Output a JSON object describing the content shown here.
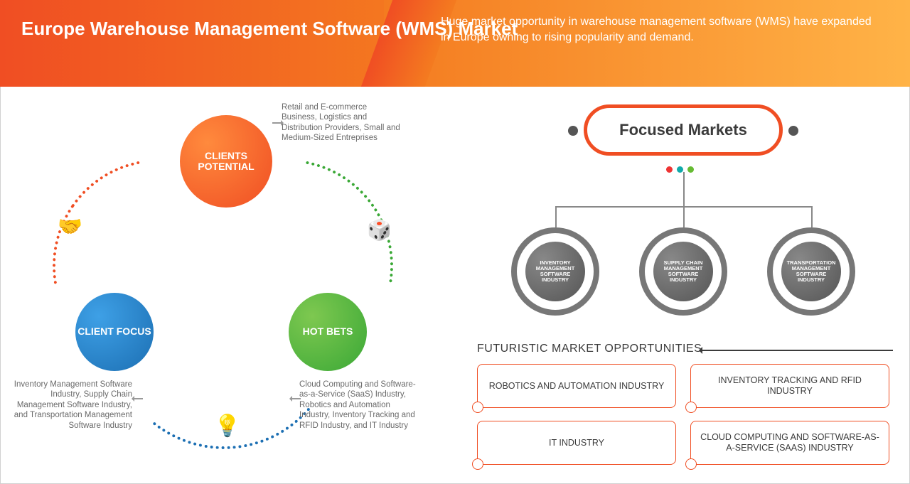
{
  "header": {
    "title": "Europe Warehouse Management Software (WMS) Market",
    "desc": "Huge market opportunity in warehouse management software (WMS) have expanded in Europe owning to rising popularity and demand."
  },
  "colors": {
    "orange_start": "#f04e23",
    "orange_end": "#f47b20",
    "blue": "#1c6fb3",
    "green": "#3aa836",
    "grey": "#777"
  },
  "circles": {
    "potential": {
      "label": "CLIENTS POTENTIAL",
      "desc": "Retail and E-commerce Business, Logistics and Distribution Providers, Small and Medium-Sized Entreprises"
    },
    "focus": {
      "label": "CLIENT FOCUS",
      "desc": "Inventory Management Software Industry, Supply Chain Management Software Industry, and Transportation Management Software Industry"
    },
    "hotbets": {
      "label": "HOT BETS",
      "desc": "Cloud Computing and Software-as-a-Service (SaaS) Industry, Robotics and Automation Industry, Inventory Tracking and RFID Industry, and IT Industry"
    }
  },
  "icons": {
    "handshake": "🤝",
    "dice": "🎲",
    "bulb": "💡"
  },
  "focused": {
    "title": "Focused Markets",
    "rings": [
      "INVENTORY MANAGEMENT SOFTWARE INDUSTRY",
      "SUPPLY CHAIN MANAGEMENT SOFTWARE INDUSTRY",
      "TRANSPORTATION MANAGEMENT SOFTWARE INDUSTRY"
    ]
  },
  "fmo": {
    "title": "FUTURISTIC MARKET OPPORTUNITIES",
    "boxes": [
      "ROBOTICS AND AUTOMATION INDUSTRY",
      "INVENTORY TRACKING AND RFID INDUSTRY",
      "IT INDUSTRY",
      "CLOUD COMPUTING AND SOFTWARE-AS-A-SERVICE (SAAS) INDUSTRY"
    ]
  }
}
